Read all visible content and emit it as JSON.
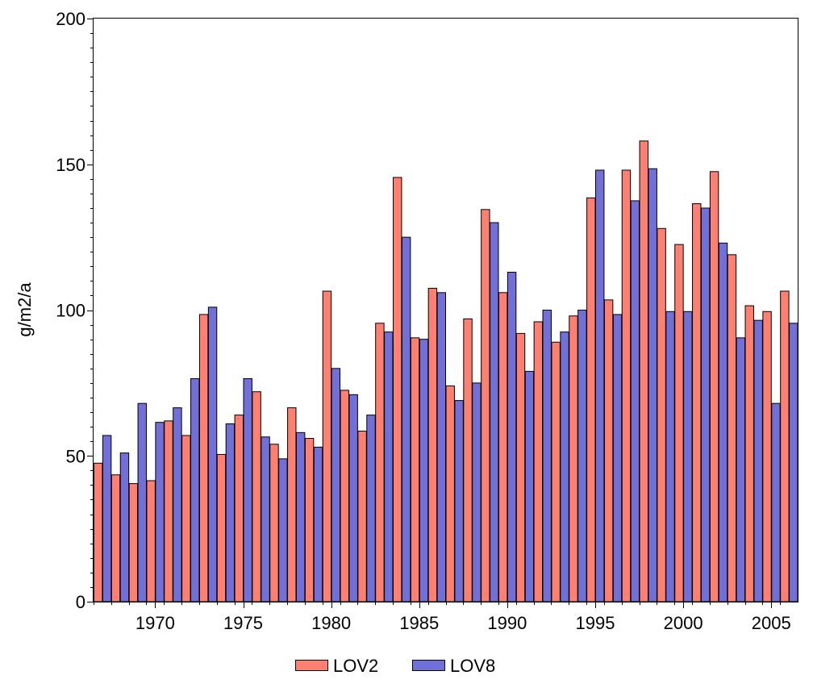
{
  "chart_data": {
    "type": "bar",
    "title": "",
    "xlabel": "",
    "ylabel": "g/m2/a",
    "ylim": [
      0,
      200
    ],
    "yticks": [
      0,
      50,
      100,
      150,
      200
    ],
    "xticks": [
      "1970",
      "1975",
      "1980",
      "1985",
      "1990",
      "1995",
      "2000",
      "2005"
    ],
    "grid": false,
    "legend_position": "bottom",
    "categories": [
      1967,
      1968,
      1969,
      1970,
      1971,
      1972,
      1973,
      1974,
      1975,
      1976,
      1977,
      1978,
      1979,
      1980,
      1981,
      1982,
      1983,
      1984,
      1985,
      1986,
      1987,
      1988,
      1989,
      1990,
      1991,
      1992,
      1993,
      1994,
      1995,
      1996,
      1997,
      1998,
      1999,
      2000,
      2001,
      2002,
      2003,
      2004,
      2005,
      2006
    ],
    "series": [
      {
        "name": "LOV2",
        "color": "#ff7f70",
        "values": [
          47.5,
          43.5,
          40.5,
          41.5,
          62,
          57,
          98.5,
          50.5,
          64,
          72,
          54,
          66.5,
          56,
          106.5,
          72.5,
          58.5,
          95.5,
          145.5,
          90.5,
          107.5,
          74,
          97,
          134.5,
          106,
          92,
          96,
          89,
          98,
          138.5,
          103.5,
          148,
          158,
          128,
          122.5,
          136.5,
          147.5,
          119,
          101.5,
          99.5,
          106.5
        ]
      },
      {
        "name": "LOV8",
        "color": "#7070d8",
        "values": [
          57,
          51,
          68,
          61.5,
          66.5,
          76.5,
          101,
          61,
          76.5,
          56.5,
          49,
          58,
          53,
          80,
          71,
          64,
          92.5,
          125,
          90,
          106,
          69,
          75,
          130,
          113,
          79,
          100,
          92.5,
          100,
          148,
          98.5,
          137.5,
          148.5,
          99.5,
          99.5,
          135,
          123,
          90.5,
          96.5,
          68,
          95.5
        ]
      }
    ]
  }
}
